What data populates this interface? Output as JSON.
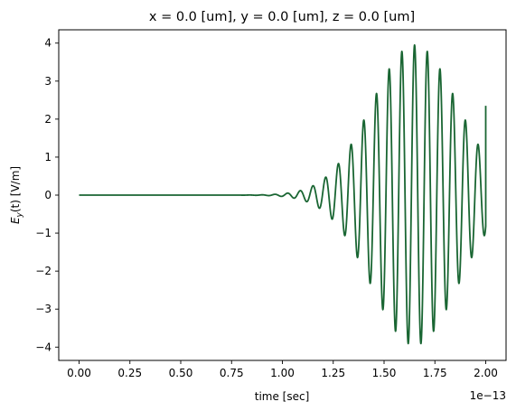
{
  "chart_data": {
    "type": "line",
    "title": "x = 0.0 [um], y = 0.0 [um], z = 0.0 [um]",
    "xlabel": "time [sec]",
    "ylabel_main": "E",
    "ylabel_sub": "y",
    "ylabel_rest": "(t) [V/m]",
    "x_offset_label": "1e−13",
    "xlim": [
      -0.1,
      2.1
    ],
    "ylim": [
      -4.35,
      4.35
    ],
    "x_ticks": [
      0.0,
      0.25,
      0.5,
      0.75,
      1.0,
      1.25,
      1.5,
      1.75,
      2.0
    ],
    "x_tick_labels": [
      "0.00",
      "0.25",
      "0.50",
      "0.75",
      "1.00",
      "1.25",
      "1.50",
      "1.75",
      "2.00"
    ],
    "y_ticks": [
      4,
      3,
      2,
      1,
      0,
      -1,
      -2,
      -3,
      -4
    ],
    "y_tick_labels": [
      "4",
      "3",
      "2",
      "1",
      "0",
      "−1",
      "−2",
      "−3",
      "−4"
    ],
    "grid": false,
    "series": [
      {
        "color": "#1a6633",
        "peak_time": 1.65,
        "peak_amplitude": 3.95,
        "pulse_width": 0.3,
        "period": 0.0625,
        "start": 0.0,
        "end": 2.0,
        "end_value": 2.35
      }
    ]
  }
}
